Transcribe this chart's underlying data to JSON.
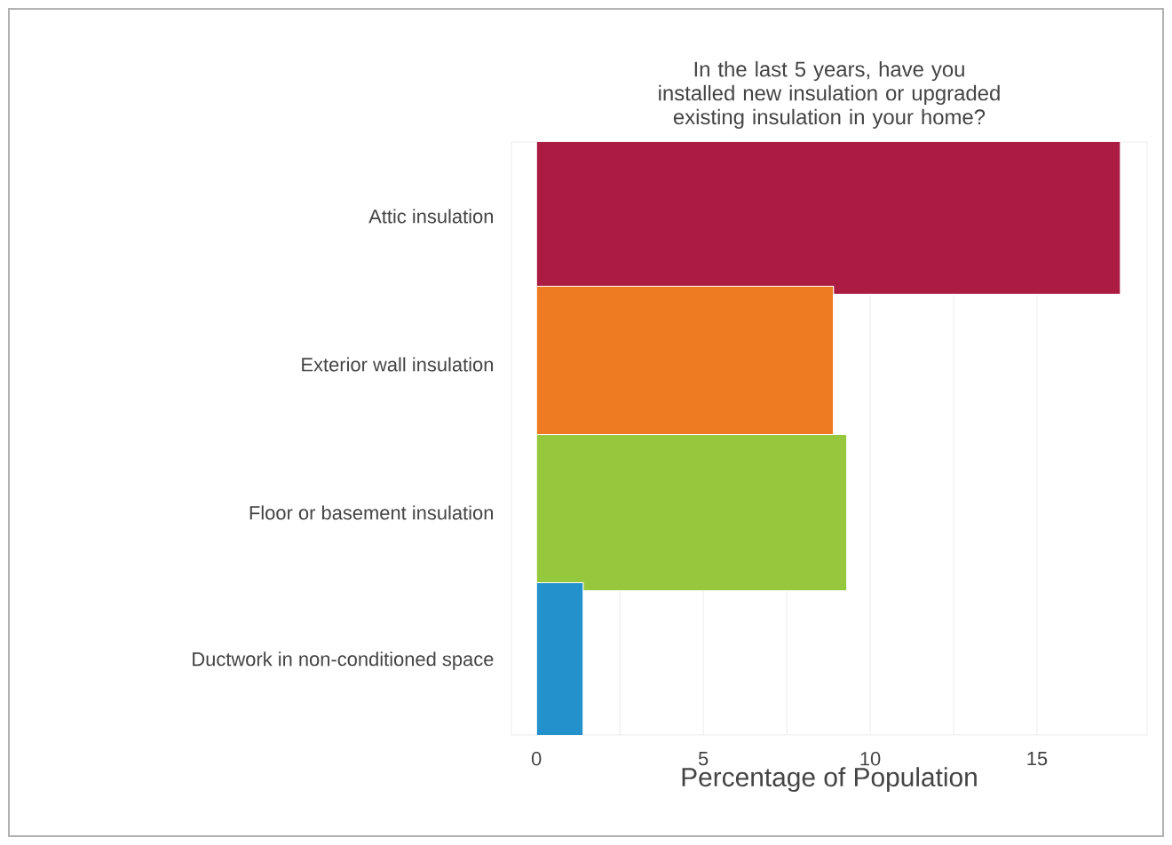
{
  "chart_data": {
    "type": "bar",
    "orientation": "horizontal",
    "title": "In the last 5 years, have you installed new insulation or upgraded existing insulation in your home?",
    "xlabel": "Percentage of Population",
    "categories": [
      "Attic insulation",
      "Exterior wall insulation",
      "Floor or basement insulation",
      "Ductwork in non-conditioned space"
    ],
    "values": [
      17.5,
      8.9,
      9.3,
      1.4
    ],
    "colors": [
      "#ab1b42",
      "#ee7b22",
      "#95c83c",
      "#2391cb"
    ],
    "xlim": [
      -0.75,
      18.3
    ],
    "xticks": [
      0,
      5,
      10,
      15
    ],
    "grid": "x"
  }
}
